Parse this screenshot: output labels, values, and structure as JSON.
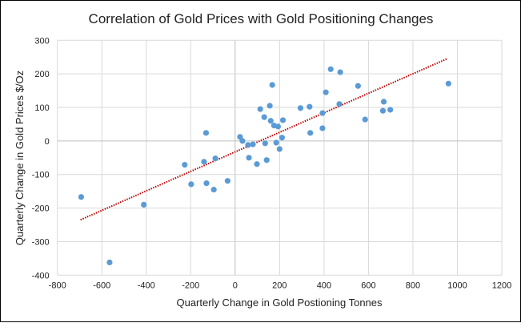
{
  "chart_data": {
    "type": "scatter",
    "title": "Correlation of Gold Prices with  Gold Positioning Changes",
    "xlabel": "Quarterly Change in Gold Postioning Tonnes",
    "ylabel": "Quarterly Change in Gold Prices $/Oz",
    "xlim": [
      -800,
      1200
    ],
    "ylim": [
      -400,
      300
    ],
    "xticks": [
      -800,
      -600,
      -400,
      -200,
      0,
      200,
      400,
      600,
      800,
      1000,
      1200
    ],
    "yticks": [
      -400,
      -300,
      -200,
      -100,
      0,
      100,
      200,
      300
    ],
    "grid": true,
    "legend": "none",
    "colors": {
      "points": "#5b9bd5",
      "trendline": "#c00000",
      "grid": "#d9d9d9",
      "zero_axis": "#bfbfbf"
    },
    "points": [
      [
        -693,
        -167
      ],
      [
        -565,
        -362
      ],
      [
        -411,
        -190
      ],
      [
        -227,
        -71
      ],
      [
        -198,
        -129
      ],
      [
        -140,
        -62
      ],
      [
        -131,
        24
      ],
      [
        -129,
        -126
      ],
      [
        -96,
        -145
      ],
      [
        -89,
        -52
      ],
      [
        -34,
        -119
      ],
      [
        22,
        12
      ],
      [
        33,
        0
      ],
      [
        58,
        -12
      ],
      [
        80,
        -10
      ],
      [
        62,
        -50
      ],
      [
        98,
        -69
      ],
      [
        113,
        95
      ],
      [
        131,
        71
      ],
      [
        135,
        -7
      ],
      [
        142,
        -57
      ],
      [
        156,
        105
      ],
      [
        160,
        60
      ],
      [
        167,
        167
      ],
      [
        175,
        46
      ],
      [
        185,
        -5
      ],
      [
        193,
        43
      ],
      [
        200,
        -24
      ],
      [
        211,
        10
      ],
      [
        215,
        62
      ],
      [
        294,
        98
      ],
      [
        335,
        102
      ],
      [
        338,
        24
      ],
      [
        393,
        83
      ],
      [
        393,
        38
      ],
      [
        408,
        145
      ],
      [
        430,
        214
      ],
      [
        473,
        205
      ],
      [
        469,
        110
      ],
      [
        553,
        164
      ],
      [
        585,
        64
      ],
      [
        665,
        90
      ],
      [
        669,
        117
      ],
      [
        698,
        93
      ],
      [
        960,
        171
      ]
    ],
    "trendline": {
      "type": "linear",
      "style": "dotted",
      "x_range": [
        -696,
        955
      ],
      "slope": 0.291,
      "intercept": -32.5
    }
  }
}
